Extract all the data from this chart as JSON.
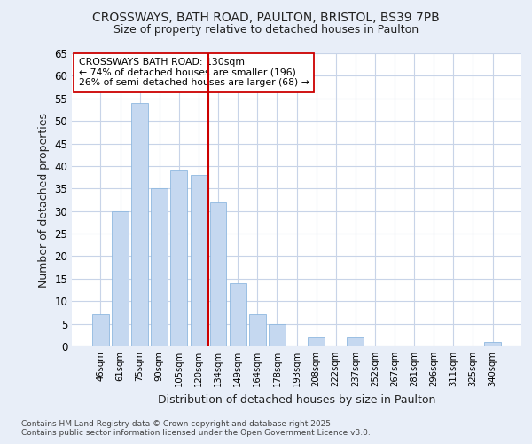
{
  "title_line1": "CROSSWAYS, BATH ROAD, PAULTON, BRISTOL, BS39 7PB",
  "title_line2": "Size of property relative to detached houses in Paulton",
  "xlabel": "Distribution of detached houses by size in Paulton",
  "ylabel": "Number of detached properties",
  "categories": [
    "46sqm",
    "61sqm",
    "75sqm",
    "90sqm",
    "105sqm",
    "120sqm",
    "134sqm",
    "149sqm",
    "164sqm",
    "178sqm",
    "193sqm",
    "208sqm",
    "222sqm",
    "237sqm",
    "252sqm",
    "267sqm",
    "281sqm",
    "296sqm",
    "311sqm",
    "325sqm",
    "340sqm"
  ],
  "values": [
    7,
    30,
    54,
    35,
    39,
    38,
    32,
    14,
    7,
    5,
    0,
    2,
    0,
    2,
    0,
    0,
    0,
    0,
    0,
    0,
    1
  ],
  "bar_color": "#c5d8f0",
  "bar_edge_color": "#8fb8e0",
  "vline_x_index": 6,
  "vline_color": "#cc0000",
  "annotation_title": "CROSSWAYS BATH ROAD: 130sqm",
  "annotation_line1": "← 74% of detached houses are smaller (196)",
  "annotation_line2": "26% of semi-detached houses are larger (68) →",
  "footer_line1": "Contains HM Land Registry data © Crown copyright and database right 2025.",
  "footer_line2": "Contains public sector information licensed under the Open Government Licence v3.0.",
  "bg_color": "#e8eef8",
  "plot_bg_color": "#ffffff",
  "grid_color": "#c8d4e8",
  "ylim": [
    0,
    65
  ],
  "yticks": [
    0,
    5,
    10,
    15,
    20,
    25,
    30,
    35,
    40,
    45,
    50,
    55,
    60,
    65
  ]
}
